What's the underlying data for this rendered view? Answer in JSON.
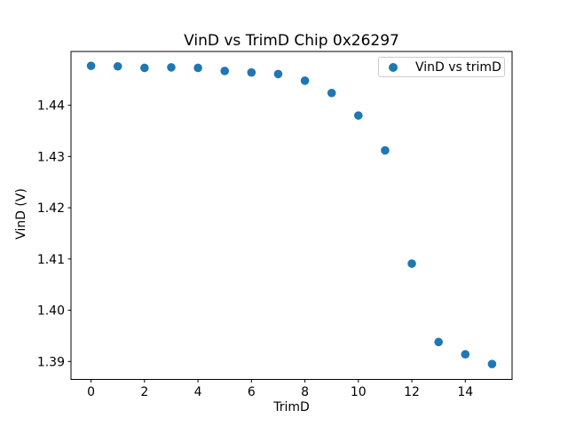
{
  "chart_data": {
    "type": "scatter",
    "title": "VinD vs TrimD Chip 0x26297",
    "xlabel": "TrimD",
    "ylabel": "VinD (V)",
    "legend": {
      "label": "VinD vs trimD",
      "position": "upper right",
      "marker": "circle"
    },
    "marker_color": "#1f77b4",
    "axis_color": "#000000",
    "tick_label_color": "#000000",
    "legend_border_color": "#cccccc",
    "background_color": "#ffffff",
    "x": [
      0,
      1,
      2,
      3,
      4,
      5,
      6,
      7,
      8,
      9,
      10,
      11,
      12,
      13,
      14,
      15
    ],
    "y": [
      1.4477,
      1.4476,
      1.4473,
      1.4474,
      1.4473,
      1.4467,
      1.4464,
      1.4461,
      1.4448,
      1.4424,
      1.438,
      1.4312,
      1.4091,
      1.3938,
      1.3914,
      1.3895
    ],
    "xlim": [
      -0.75,
      15.75
    ],
    "ylim": [
      1.3865,
      1.4505
    ],
    "xticks": [
      0,
      2,
      4,
      6,
      8,
      10,
      12,
      14
    ],
    "yticks": [
      1.39,
      1.4,
      1.41,
      1.42,
      1.43,
      1.44
    ],
    "ytick_decimals": 2,
    "grid": false
  }
}
